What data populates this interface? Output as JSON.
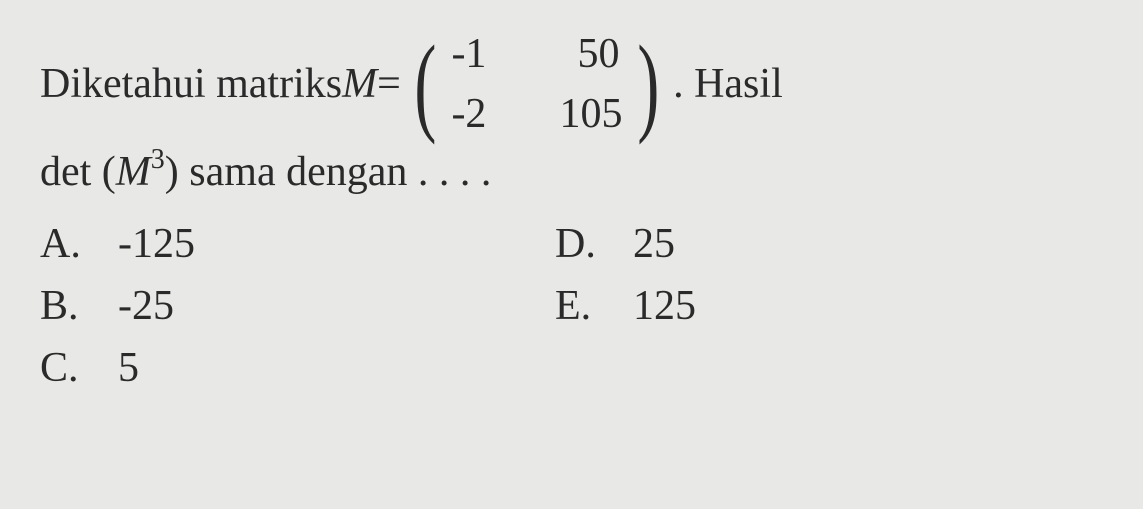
{
  "question": {
    "text_before_matrix": "Diketahui matriks ",
    "variable": "M",
    "equals": " = ",
    "matrix": {
      "rows": [
        [
          "-1",
          "50"
        ],
        [
          "-2",
          "105"
        ]
      ]
    },
    "text_after_matrix": ". Hasil",
    "line2_prefix": "det (",
    "line2_var": "M",
    "line2_exponent": "3",
    "line2_suffix": ") sama dengan . . . ."
  },
  "options": {
    "left": [
      {
        "letter": "A.",
        "value": "-125"
      },
      {
        "letter": "B.",
        "value": "-25"
      },
      {
        "letter": "C.",
        "value": "5"
      }
    ],
    "right": [
      {
        "letter": "D.",
        "value": "25"
      },
      {
        "letter": "E.",
        "value": "125"
      }
    ]
  },
  "styling": {
    "background_color": "#e8e8e6",
    "text_color": "#2a2a2a",
    "font_size_main": 42,
    "font_size_sup": 28,
    "font_family": "Georgia, Times New Roman, serif"
  }
}
